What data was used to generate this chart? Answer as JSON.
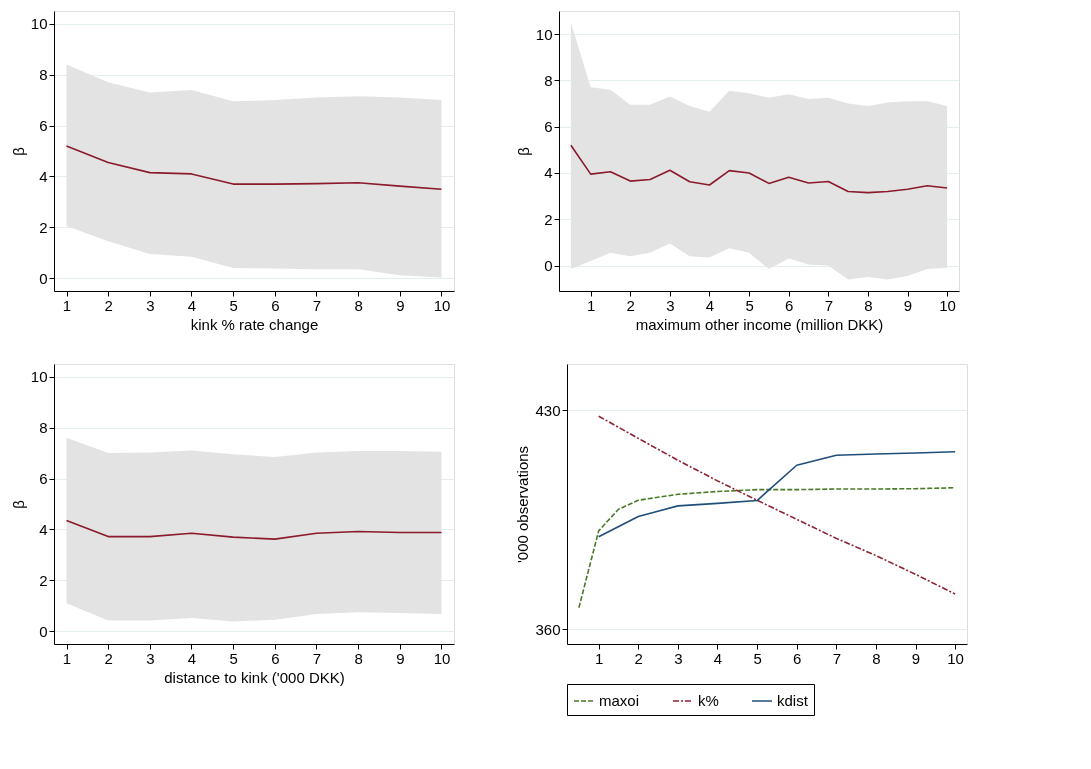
{
  "chart_data": [
    {
      "type": "line",
      "xlabel": "kink % rate change",
      "ylabel": "β",
      "xlim": [
        0.7,
        10.3
      ],
      "xticks": [
        1,
        2,
        3,
        4,
        5,
        6,
        7,
        8,
        9,
        10
      ],
      "ylim": [
        -0.5,
        10.5
      ],
      "yticks": [
        0,
        2,
        4,
        6,
        8,
        10
      ],
      "grid": "y",
      "legend": false,
      "x": [
        1,
        2,
        3,
        4,
        5,
        6,
        7,
        8,
        9,
        10
      ],
      "series": [
        {
          "color": "#8b1a2b",
          "values": [
            5.2,
            4.55,
            4.15,
            4.1,
            3.7,
            3.7,
            3.72,
            3.75,
            3.62,
            3.5
          ],
          "lower": [
            2.05,
            1.45,
            0.95,
            0.85,
            0.4,
            0.38,
            0.35,
            0.35,
            0.12,
            0.03
          ],
          "upper": [
            8.4,
            7.7,
            7.3,
            7.4,
            6.95,
            7.0,
            7.1,
            7.15,
            7.1,
            7.0
          ]
        }
      ]
    },
    {
      "type": "line",
      "xlabel": "maximum other income (million DKK)",
      "ylabel": "β",
      "xlim": [
        0.2,
        10.3
      ],
      "xticks": [
        1,
        2,
        3,
        4,
        5,
        6,
        7,
        8,
        9,
        10
      ],
      "ylim": [
        -1.1,
        11
      ],
      "yticks": [
        0,
        2,
        4,
        6,
        8,
        10
      ],
      "grid": "y",
      "legend": false,
      "x": [
        0.5,
        1,
        1.5,
        2,
        2.5,
        3,
        3.5,
        4,
        4.5,
        5,
        5.5,
        6,
        6.5,
        7,
        7.5,
        8,
        8.5,
        9,
        9.5,
        10
      ],
      "series": [
        {
          "color": "#8b1a2b",
          "values": [
            5.2,
            3.95,
            4.05,
            3.65,
            3.72,
            4.12,
            3.62,
            3.48,
            4.1,
            4.0,
            3.55,
            3.82,
            3.57,
            3.63,
            3.2,
            3.15,
            3.2,
            3.3,
            3.45,
            3.35
          ],
          "lower": [
            -0.15,
            0.2,
            0.55,
            0.4,
            0.55,
            0.95,
            0.4,
            0.35,
            0.75,
            0.55,
            -0.15,
            0.3,
            0.05,
            0.0,
            -0.6,
            -0.5,
            -0.6,
            -0.45,
            -0.15,
            -0.1
          ],
          "upper": [
            10.5,
            7.7,
            7.6,
            6.95,
            6.95,
            7.3,
            6.9,
            6.65,
            7.55,
            7.45,
            7.25,
            7.4,
            7.2,
            7.25,
            7.0,
            6.9,
            7.05,
            7.1,
            7.1,
            6.9
          ]
        }
      ]
    },
    {
      "type": "line",
      "xlabel": "distance to kink ('000 DKK)",
      "ylabel": "β",
      "xlim": [
        0.7,
        10.3
      ],
      "xticks": [
        1,
        2,
        3,
        4,
        5,
        6,
        7,
        8,
        9,
        10
      ],
      "ylim": [
        -0.5,
        10.5
      ],
      "yticks": [
        0,
        2,
        4,
        6,
        8,
        10
      ],
      "grid": "y",
      "legend": false,
      "x": [
        1,
        2,
        3,
        4,
        5,
        6,
        7,
        8,
        9,
        10
      ],
      "series": [
        {
          "color": "#8b1a2b",
          "values": [
            4.35,
            3.72,
            3.72,
            3.85,
            3.7,
            3.62,
            3.85,
            3.92,
            3.88,
            3.88
          ],
          "lower": [
            1.1,
            0.42,
            0.42,
            0.52,
            0.38,
            0.45,
            0.68,
            0.75,
            0.72,
            0.68
          ],
          "upper": [
            7.6,
            7.0,
            7.02,
            7.1,
            6.95,
            6.85,
            7.02,
            7.08,
            7.08,
            7.05
          ]
        }
      ]
    },
    {
      "type": "line",
      "ylabel": "'000 observations",
      "xlim": [
        0.2,
        10.3
      ],
      "xticks": [
        1,
        2,
        3,
        4,
        5,
        6,
        7,
        8,
        9,
        10
      ],
      "ylim": [
        355.2,
        444.8
      ],
      "yticks": [
        360,
        430
      ],
      "grid": "y",
      "legend": "bottom",
      "series": [
        {
          "name": "maxoi",
          "color": "#4a7a2a",
          "line_style": "dashed",
          "x": [
            0.5,
            1,
            1.5,
            2,
            3,
            4,
            5,
            6,
            7,
            8,
            9,
            10
          ],
          "values": [
            366.8,
            391.4,
            398.3,
            401.2,
            403.1,
            404.0,
            404.6,
            404.6,
            404.8,
            404.8,
            404.9,
            405.2
          ]
        },
        {
          "name": "k%",
          "color": "#8b2232",
          "line_style": "dashdot",
          "x": [
            1,
            2,
            3,
            4,
            5,
            6,
            7,
            8,
            9,
            10
          ],
          "values": [
            428.1,
            421.0,
            414.0,
            407.4,
            401.2,
            395.1,
            389.0,
            383.5,
            377.5,
            371.2
          ]
        },
        {
          "name": "kdist",
          "color": "#1f4e79",
          "line_style": "solid",
          "x": [
            1,
            2,
            3,
            4,
            5,
            6,
            7,
            8,
            9,
            10
          ],
          "values": [
            389.5,
            396.0,
            399.4,
            400.2,
            401.1,
            412.4,
            415.6,
            416.0,
            416.3,
            416.7
          ]
        }
      ]
    }
  ]
}
